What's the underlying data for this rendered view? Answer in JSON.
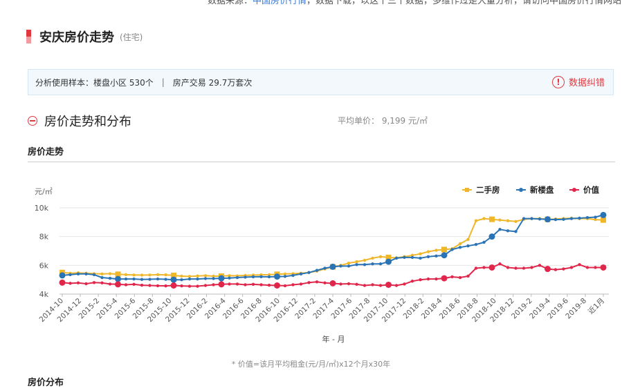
{
  "top_note": {
    "prefix": "数据来源：",
    "link": "中国房价行情",
    "rest": "，数据下载，以这个三个数据，多维作过是大量分析，请访问中国房价行情网站"
  },
  "header": {
    "title": "安庆房价走势",
    "subtitle": "(住宅)"
  },
  "sample": {
    "prefix": "分析使用样本：",
    "communities": "楼盘小区 530个",
    "separator": "|",
    "transactions": "房产交易 29.7万套次",
    "error_label": "数据纠错",
    "error_icon": "!"
  },
  "section": {
    "title": "房价走势和分布",
    "avg_price": "平均单价： 9,199 元/㎡"
  },
  "subsection": "房价走势",
  "chart_data": {
    "type": "line",
    "ylabel": "元/㎡",
    "xlabel": "年 - 月",
    "ylim": [
      4000,
      10000
    ],
    "yticks": [
      "4k",
      "6k",
      "8k",
      "10k"
    ],
    "yticks_values": [
      4000,
      6000,
      8000,
      10000
    ],
    "x_tick_labels": [
      "2014-10",
      "2014-12",
      "2015-2",
      "2015-4",
      "2015-6",
      "2015-8",
      "2015-10",
      "2015-12",
      "2016-2",
      "2016-4",
      "2016-6",
      "2016-8",
      "2016-10",
      "2016-12",
      "2017-2",
      "2017-4",
      "2017-6",
      "2017-8",
      "2017-10",
      "2017-12",
      "2018-2",
      "2018-4",
      "2018-6",
      "2018-8",
      "2018-10",
      "2018-12",
      "2019-2",
      "2019-4",
      "2019-6",
      "2019-8",
      "近1月"
    ],
    "grid": true,
    "legend_position": "top-right",
    "colors": {
      "二手房": "#f0b72a",
      "新楼盘": "#2a73b5",
      "价值": "#e0264a"
    },
    "series": [
      {
        "name": "二手房",
        "values": [
          5500,
          5450,
          5480,
          5450,
          5420,
          5400,
          5420,
          5380,
          5350,
          5330,
          5320,
          5330,
          5350,
          5340,
          5300,
          5250,
          5230,
          5260,
          5280,
          5250,
          5250,
          5280,
          5270,
          5300,
          5320,
          5340,
          5350,
          5380,
          5400,
          5420,
          5450,
          5500,
          5600,
          5750,
          5900,
          6000,
          6150,
          6250,
          6350,
          6500,
          6600,
          6550,
          6520,
          6600,
          6700,
          6800,
          6950,
          7050,
          7100,
          7150,
          7500,
          7800,
          9100,
          9250,
          9200,
          9150,
          9100,
          9050,
          9200,
          9250,
          9250,
          9200,
          9220,
          9250,
          9280,
          9250,
          9250,
          9180,
          9150
        ],
        "markers": [
          0,
          18,
          36,
          54,
          72,
          90,
          108,
          126,
          144,
          162,
          180
        ]
      },
      {
        "name": "新楼盘",
        "values": [
          5300,
          5350,
          5400,
          5400,
          5350,
          5150,
          5100,
          5050,
          5050,
          5050,
          5020,
          5030,
          5050,
          5030,
          5000,
          5000,
          5050,
          5050,
          5080,
          5080,
          5100,
          5120,
          5150,
          5180,
          5200,
          5210,
          5200,
          5220,
          5230,
          5300,
          5400,
          5500,
          5650,
          5800,
          5900,
          5950,
          5950,
          6050,
          6050,
          6100,
          6100,
          6250,
          6500,
          6550,
          6550,
          6500,
          6600,
          6650,
          6700,
          7100,
          7250,
          7350,
          7450,
          7600,
          8000,
          8500,
          8400,
          8350,
          9250,
          9250,
          9220,
          9200,
          9180,
          9200,
          9250,
          9280,
          9320,
          9350,
          9500
        ],
        "markers": [
          0,
          18,
          36,
          54,
          72,
          90,
          108,
          126,
          144,
          162,
          180
        ]
      },
      {
        "name": "价值",
        "values": [
          4800,
          4750,
          4780,
          4720,
          4800,
          4780,
          4700,
          4680,
          4650,
          4680,
          4620,
          4600,
          4580,
          4570,
          4600,
          4570,
          4550,
          4550,
          4600,
          4650,
          4680,
          4700,
          4700,
          4650,
          4680,
          4650,
          4620,
          4600,
          4580,
          4650,
          4700,
          4800,
          4850,
          4780,
          4750,
          4700,
          4720,
          4680,
          4600,
          4650,
          4600,
          4650,
          4600,
          4700,
          4900,
          5000,
          5050,
          5050,
          5100,
          5200,
          5150,
          5250,
          5800,
          5850,
          5850,
          6100,
          5850,
          5800,
          5800,
          5850,
          6000,
          5750,
          5700,
          5750,
          5850,
          6050,
          5850,
          5850,
          5850
        ],
        "markers": [
          0,
          18,
          36,
          54,
          72,
          90,
          108,
          126,
          144,
          162,
          180
        ]
      }
    ]
  },
  "footnote": "* 价值=该月平均租金(元/月/㎡)x12个月x30年",
  "next_subsection": "房价分布"
}
